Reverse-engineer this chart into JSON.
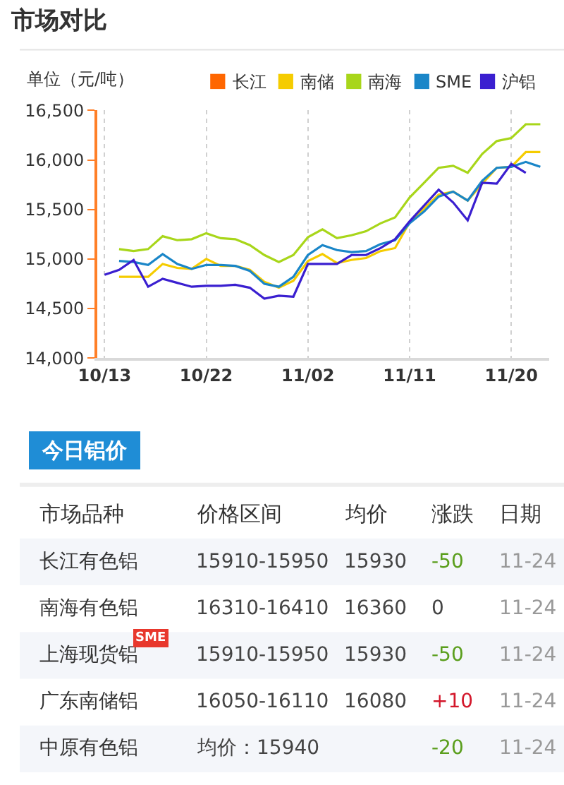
{
  "chart_data": [
    {
      "type": "line",
      "title": "市场对比",
      "ylabel": "单位（元/吨）",
      "categories": [
        "10/13",
        null,
        null,
        null,
        null,
        null,
        null,
        "10/22",
        null,
        null,
        null,
        null,
        null,
        null,
        "11/02",
        null,
        null,
        null,
        null,
        null,
        null,
        "11/11",
        null,
        null,
        null,
        null,
        null,
        null,
        "11/20",
        null,
        null
      ],
      "series": [
        {
          "name": "长江",
          "color": "#ff6600",
          "values": [
            null,
            null,
            null,
            null,
            null,
            null,
            null,
            null,
            null,
            null,
            null,
            null,
            null,
            null,
            null,
            null,
            null,
            null,
            null,
            null,
            null,
            null,
            null,
            null,
            null,
            null,
            null,
            null,
            null,
            null,
            null
          ]
        },
        {
          "name": "南储",
          "color": "#f5cc00",
          "values": [
            null,
            14820,
            14820,
            14820,
            14950,
            14910,
            14900,
            15000,
            14930,
            14930,
            14890,
            14770,
            14710,
            14780,
            14980,
            15050,
            14960,
            14990,
            15010,
            15080,
            15110,
            15370,
            15510,
            15650,
            15680,
            15590,
            15760,
            15920,
            15930,
            16080,
            16080
          ]
        },
        {
          "name": "南海",
          "color": "#a8d61a",
          "values": [
            null,
            15100,
            15080,
            15100,
            15230,
            15190,
            15200,
            15260,
            15210,
            15200,
            15140,
            15040,
            14970,
            15040,
            15220,
            15300,
            15210,
            15240,
            15280,
            15360,
            15420,
            15620,
            15770,
            15920,
            15940,
            15870,
            16060,
            16190,
            16220,
            16360,
            16360
          ]
        },
        {
          "name": "SME",
          "color": "#1a86c8",
          "values": [
            null,
            14980,
            14970,
            14940,
            15050,
            14950,
            14900,
            14940,
            14940,
            14930,
            14880,
            14750,
            14720,
            14820,
            15040,
            15140,
            15090,
            15070,
            15080,
            15150,
            15190,
            15360,
            15480,
            15630,
            15680,
            15590,
            15790,
            15920,
            15930,
            15980,
            15930
          ]
        },
        {
          "name": "沪铝",
          "color": "#3a1fd0",
          "values": [
            14840,
            14890,
            14990,
            14720,
            14800,
            14760,
            14720,
            14730,
            14730,
            14740,
            14710,
            14600,
            14630,
            14620,
            14950,
            14950,
            14950,
            15040,
            15040,
            15110,
            15200,
            15380,
            15540,
            15700,
            15570,
            15390,
            15770,
            15760,
            15960,
            15870,
            null
          ]
        }
      ],
      "ylim": [
        14000,
        16500
      ],
      "yticks": [
        {
          "value": 14000,
          "label": "14,000"
        },
        {
          "value": 14500,
          "label": "14,500"
        },
        {
          "value": 15000,
          "label": "15,000"
        },
        {
          "value": 15500,
          "label": "15,500"
        },
        {
          "value": 16000,
          "label": "16,000"
        },
        {
          "value": 16500,
          "label": "16,500"
        }
      ],
      "grid": "x",
      "legend": "top"
    },
    {
      "type": "other",
      "title": "今日铝价",
      "categories": [
        "市场品种",
        "价格区间",
        "均价",
        "涨跌",
        "日期"
      ],
      "y_categories": [
        "长江有色铝",
        "南海有色铝",
        "上海现货铝",
        "广东南储铝",
        "中原有色铝"
      ],
      "cell_labels": [
        [
          "15910-15950",
          "15930",
          "-50",
          "11-24"
        ],
        [
          "16310-16410",
          "16360",
          "0",
          "11-24"
        ],
        [
          "15910-15950",
          "15930",
          "-50",
          "11-24"
        ],
        [
          "16050-16110",
          "16080",
          "+10",
          "11-24"
        ],
        [
          "均价：15940",
          null,
          "-20",
          "11-24"
        ]
      ],
      "annotations": [
        {
          "text": "SME",
          "y": "上海现货铝"
        }
      ]
    }
  ]
}
